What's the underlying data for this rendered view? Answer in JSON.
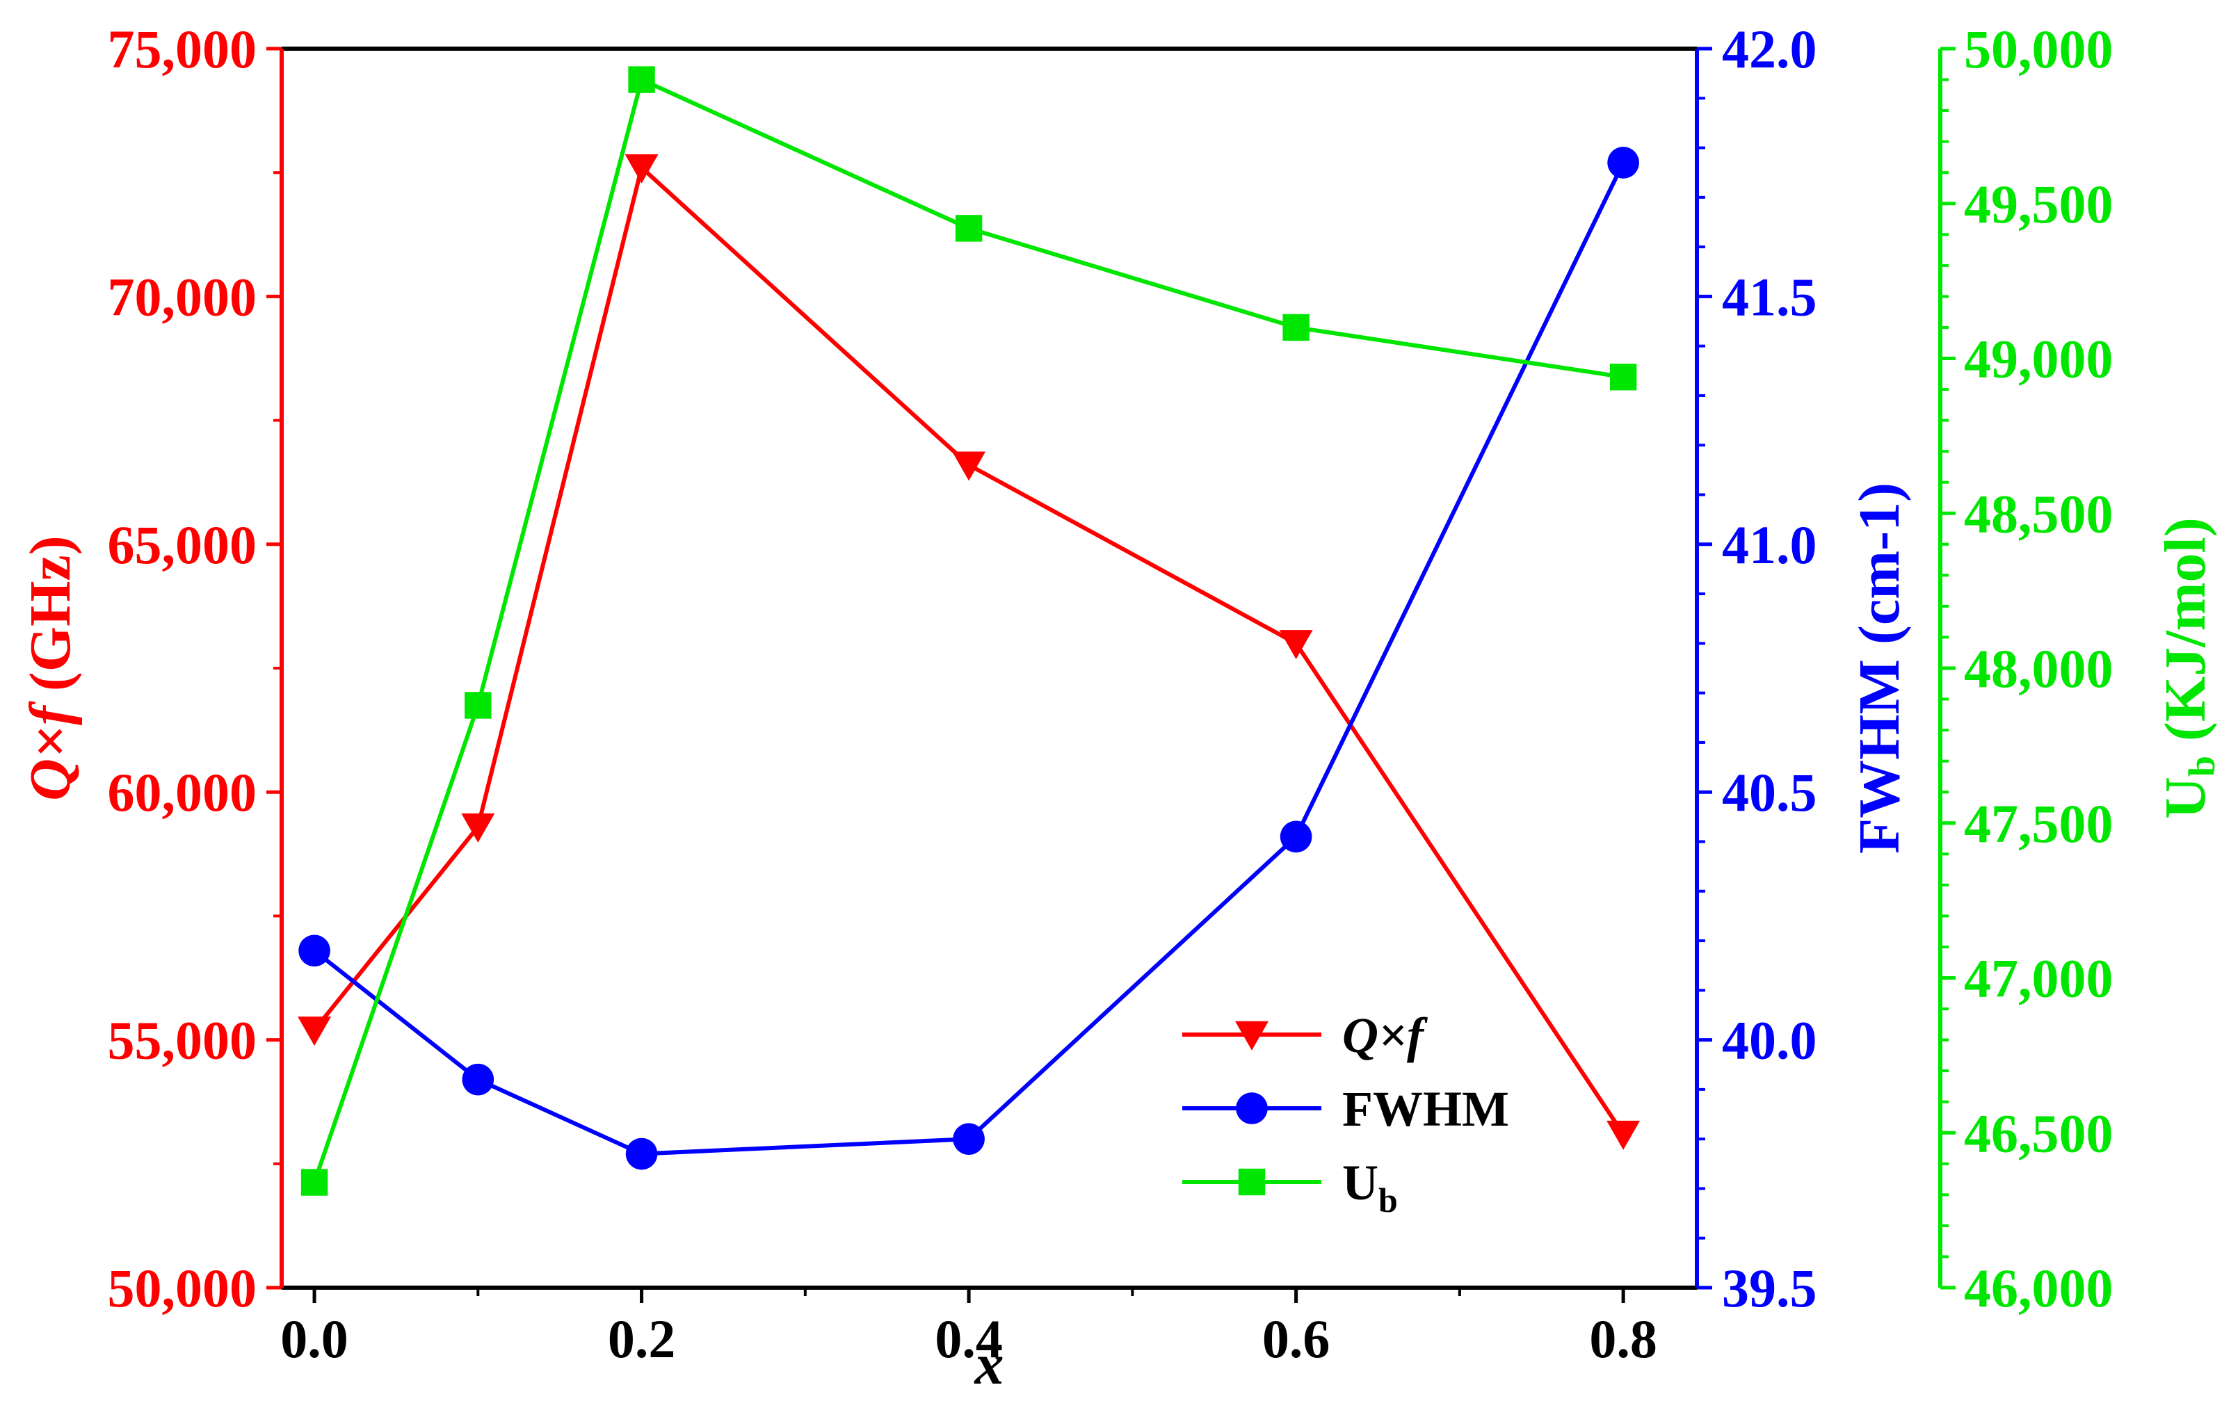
{
  "chart_data": {
    "type": "line",
    "x": [
      0.0,
      0.1,
      0.2,
      0.4,
      0.6,
      0.8
    ],
    "xlabel": "x",
    "xlim": [
      -0.02,
      0.845
    ],
    "xticks": [
      "0.0",
      "0.2",
      "0.4",
      "0.6",
      "0.8"
    ],
    "xtick_values": [
      0.0,
      0.2,
      0.4,
      0.6,
      0.8
    ],
    "axes": {
      "left": {
        "label_italic": "Q×f",
        "label_rest": " (GHz)",
        "ylim": [
          50000,
          75000
        ],
        "ticks": [
          "50,000",
          "55,000",
          "60,000",
          "65,000",
          "70,000",
          "75,000"
        ],
        "tick_values": [
          50000,
          55000,
          60000,
          65000,
          70000,
          75000
        ],
        "color": "#ff0000"
      },
      "right1": {
        "label": "FWHM (cm-1)",
        "ylim": [
          39.5,
          42.0
        ],
        "ticks": [
          "39.5",
          "40.0",
          "40.5",
          "41.0",
          "41.5",
          "42.0"
        ],
        "tick_values": [
          39.5,
          40.0,
          40.5,
          41.0,
          41.5,
          42.0
        ],
        "color": "#0000ff"
      },
      "right2": {
        "label_main": "U",
        "label_sub": "b",
        "label_rest": " (KJ/mol)",
        "ylim": [
          46000,
          50000
        ],
        "ticks": [
          "46,000",
          "46,500",
          "47,000",
          "47,500",
          "48,000",
          "48,500",
          "49,000",
          "49,500",
          "50,000"
        ],
        "tick_values": [
          46000,
          46500,
          47000,
          47500,
          48000,
          48500,
          49000,
          49500,
          50000
        ],
        "color": "#00e600"
      }
    },
    "series": [
      {
        "name": "Q×f",
        "axis": "left",
        "marker": "triangle-down",
        "color": "#ff0000",
        "values": [
          55200,
          59300,
          72600,
          66600,
          63000,
          53100
        ]
      },
      {
        "name": "FWHM",
        "axis": "right1",
        "marker": "circle",
        "color": "#0000ff",
        "values": [
          40.18,
          39.92,
          39.77,
          39.8,
          40.41,
          41.77
        ]
      },
      {
        "name": "U_b",
        "axis": "right2",
        "marker": "square",
        "color": "#00e600",
        "values": [
          46340,
          47880,
          49900,
          49420,
          49100,
          48940
        ]
      }
    ],
    "legend": [
      {
        "label_main": "Q×f",
        "label_sub": "",
        "italic": true
      },
      {
        "label_main": "FWHM",
        "label_sub": "",
        "italic": false
      },
      {
        "label_main": "U",
        "label_sub": "b",
        "italic": false
      }
    ],
    "legend_position": "bottom-right"
  }
}
